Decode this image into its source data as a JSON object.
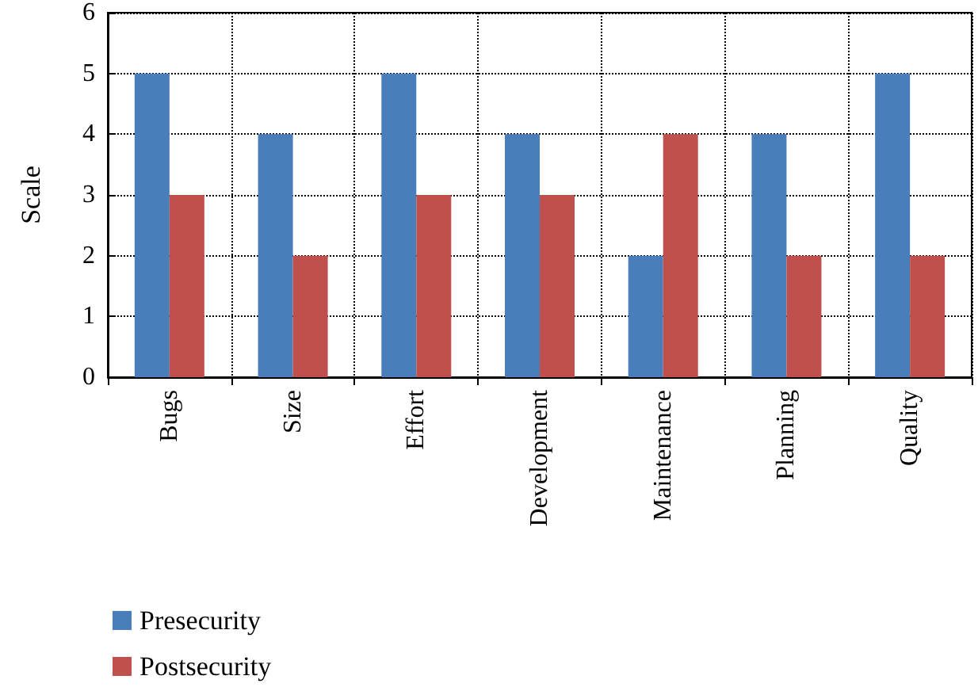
{
  "chart_data": {
    "type": "bar",
    "ylabel": "Scale",
    "categories": [
      "Bugs",
      "Size",
      "Effort",
      "Development",
      "Maintenance",
      "Planning",
      "Quality"
    ],
    "series": [
      {
        "name": "Presecurity",
        "color": "#4a7ebb",
        "values": [
          5,
          4,
          5,
          4,
          2,
          4,
          5
        ]
      },
      {
        "name": "Postsecurity",
        "color": "#c0504d",
        "values": [
          3,
          2,
          3,
          3,
          4,
          2,
          2
        ]
      }
    ],
    "ylim": [
      0,
      6
    ],
    "yticks": [
      0,
      1,
      2,
      3,
      4,
      5,
      6
    ],
    "grid": true,
    "legend": "bottom left"
  }
}
